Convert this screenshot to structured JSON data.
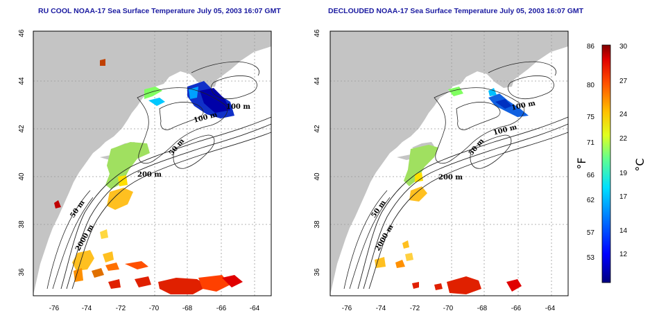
{
  "left_map": {
    "title": "RU COOL NOAA-17 Sea Surface Temperature July 05, 2003 16:07 GMT",
    "contour_labels": [
      "100 m",
      "50 m",
      "200 m",
      "50 m",
      "2000 m",
      "100 m"
    ]
  },
  "right_map": {
    "title": "DECLOUDED NOAA-17 Sea Surface Temperature July 05, 2003 16:07 GMT",
    "contour_labels": [
      "100 m",
      "100 m",
      "50 m",
      "200 m",
      "50 m",
      "2000 m"
    ]
  },
  "axes": {
    "x_ticks": [
      "-76",
      "-74",
      "-72",
      "-70",
      "-68",
      "-66",
      "-64"
    ],
    "y_ticks": [
      "36",
      "38",
      "40",
      "42",
      "44",
      "46"
    ]
  },
  "colorbar": {
    "fahrenheit_ticks": [
      "86",
      "80",
      "75",
      "71",
      "66",
      "62",
      "57",
      "53"
    ],
    "celsius_ticks": [
      "30",
      "27",
      "24",
      "22",
      "19",
      "17",
      "14",
      "12"
    ],
    "fahrenheit_unit": "°F",
    "celsius_unit": "°C"
  },
  "colors": {
    "land": "#c4c4c4",
    "title": "#1a1aa0",
    "cold": "#0000a0",
    "warm": "#a00000"
  }
}
